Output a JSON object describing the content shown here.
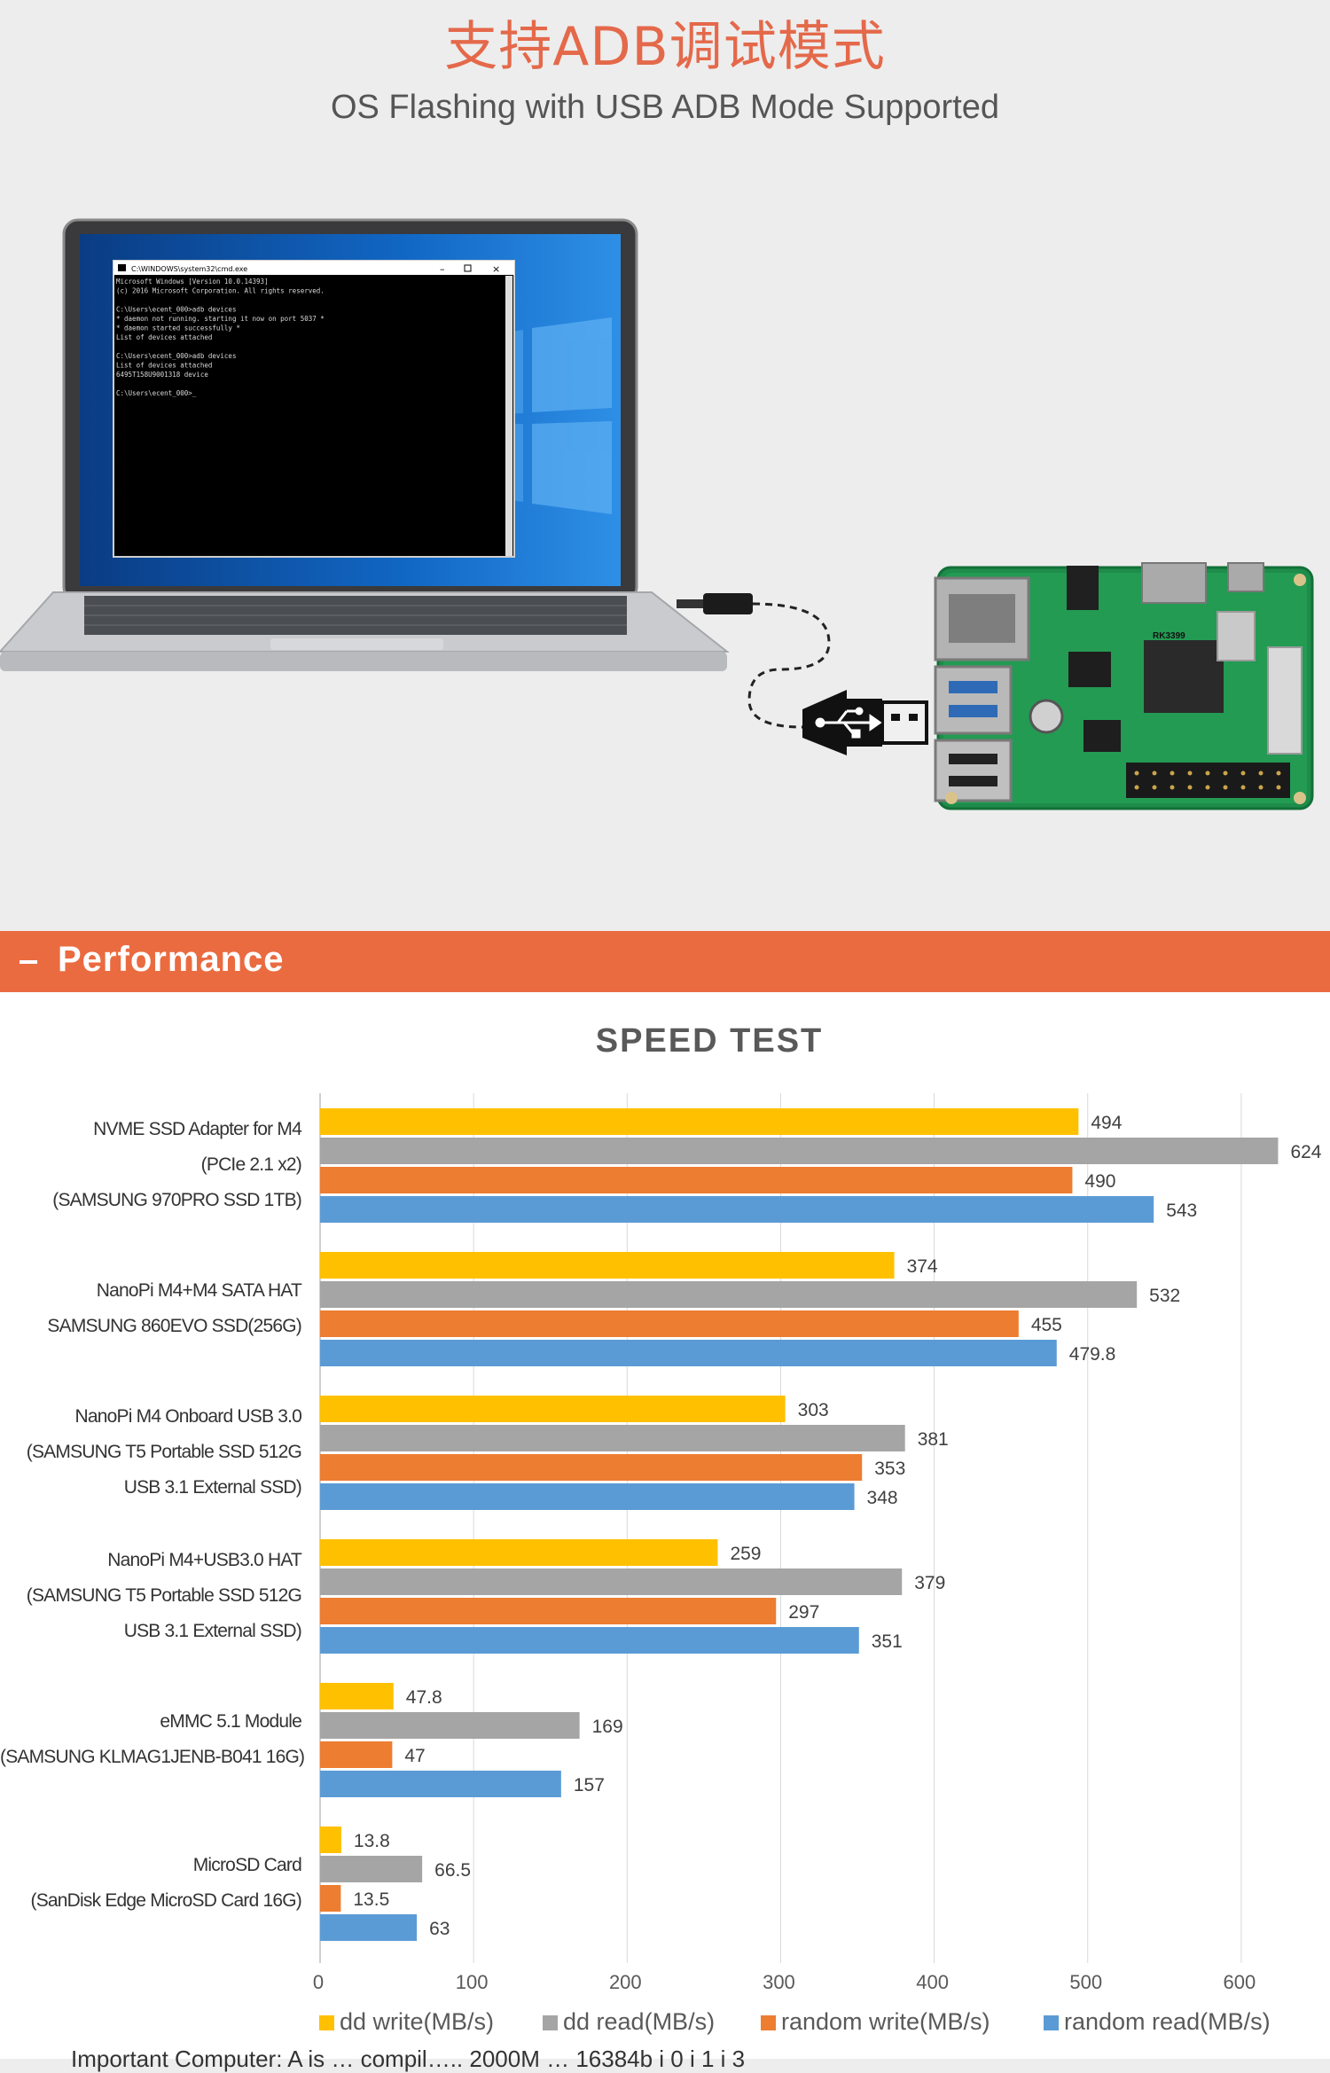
{
  "header": {
    "cn_title": "支持ADB调试模式",
    "en_subtitle": "OS Flashing with USB ADB Mode Supported"
  },
  "illustration": {
    "cmd_window_title": "C:\\WINDOWS\\system32\\cmd.exe",
    "cmd_lines": [
      "Microsoft Windows [Version 10.0.14393]",
      "(c) 2016 Microsoft Corporation. All rights reserved.",
      "",
      "C:\\Users\\ecent_000>adb devices",
      "* daemon not running. starting it now on port 5037 *",
      "* daemon started successfully *",
      "List of devices attached",
      "",
      "C:\\Users\\ecent_000>adb devices",
      "List of devices attached",
      "6495T158U9001318        device",
      "",
      "C:\\Users\\ecent_000>_"
    ],
    "board_chip_label": "RK3399"
  },
  "section": {
    "title": "Performance"
  },
  "colors": {
    "dd_write": "#ffc000",
    "dd_read": "#a5a5a5",
    "random_write": "#ed7d31",
    "random_read": "#5b9bd5",
    "banner": "#ea6b40",
    "title_red": "#e4694a"
  },
  "chart_data": {
    "type": "bar",
    "orientation": "horizontal",
    "title": "SPEED TEST",
    "categories": [
      [
        "NVME SSD Adapter for M4",
        "(PCIe 2.1 x2)",
        "(SAMSUNG 970PRO SSD 1TB)"
      ],
      [
        "NanoPi M4+M4 SATA HAT",
        "SAMSUNG 860EVO SSD(256G)"
      ],
      [
        "NanoPi M4 Onboard USB 3.0",
        "(SAMSUNG T5 Portable SSD 512G",
        "USB 3.1 External SSD)"
      ],
      [
        "NanoPi M4+USB3.0 HAT",
        "(SAMSUNG T5 Portable SSD 512G",
        "USB 3.1 External SSD)"
      ],
      [
        "eMMC 5.1 Module",
        "(SAMSUNG KLMAG1JENB-B041 16G)"
      ],
      [
        "MicroSD Card",
        "(SanDisk Edge MicroSD Card 16G)"
      ]
    ],
    "series": [
      {
        "name": "dd write(MB/s)",
        "values": [
          494,
          374,
          303,
          259,
          47.8,
          13.8
        ]
      },
      {
        "name": "dd read(MB/s)",
        "values": [
          624,
          532,
          381,
          379,
          169,
          66.5
        ]
      },
      {
        "name": "random write(MB/s)",
        "values": [
          490,
          455,
          353,
          297,
          47,
          13.5
        ]
      },
      {
        "name": "random read(MB/s)",
        "values": [
          543,
          479.8,
          348,
          351,
          157,
          63
        ]
      }
    ],
    "data_labels": [
      [
        "494",
        "374",
        "303",
        "259",
        "47.8",
        "13.8"
      ],
      [
        "624",
        "532",
        "381",
        "379",
        "169",
        "66.5"
      ],
      [
        "490",
        "455",
        "353",
        "297",
        "47",
        "13.5"
      ],
      [
        "543",
        "479.8",
        "348",
        "351",
        "157",
        "63"
      ]
    ],
    "x_ticks": [
      0,
      100,
      200,
      300,
      400,
      500,
      600
    ],
    "xlim": [
      0,
      650
    ],
    "xlabel": "",
    "ylabel": "",
    "grid": true,
    "legend_position": "bottom"
  },
  "footnote": "Important Computer: A is … compil….. 2000M … 16384b i 0 i 1 i 3"
}
